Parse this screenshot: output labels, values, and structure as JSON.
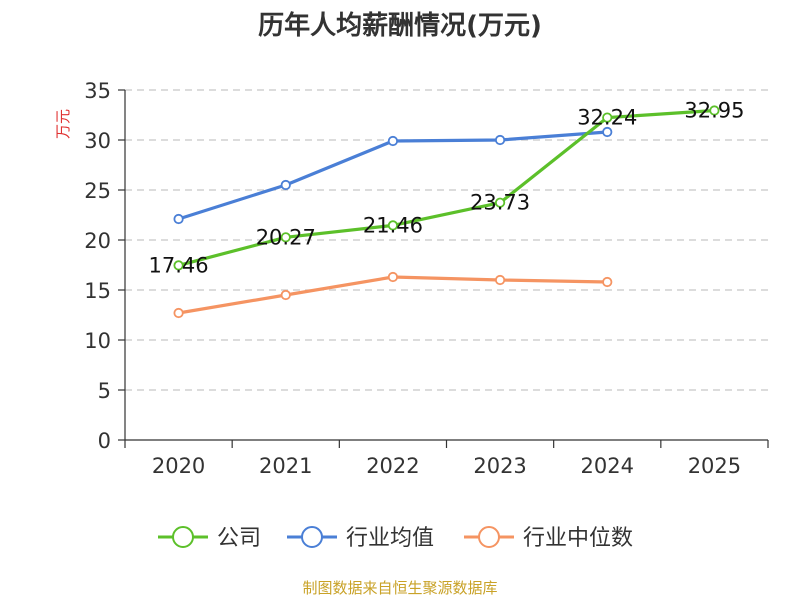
{
  "chart_data": {
    "type": "line",
    "title": "历年人均薪酬情况(万元)",
    "ylabel": "万元",
    "xlabel": "",
    "categories": [
      "2020",
      "2021",
      "2022",
      "2023",
      "2024",
      "2025"
    ],
    "ylim": [
      0,
      35
    ],
    "yticks": [
      0,
      5,
      10,
      15,
      20,
      25,
      30,
      35
    ],
    "grid": true,
    "legend_position": "bottom",
    "series": [
      {
        "name": "公司",
        "color": "#5cc02a",
        "values": [
          17.46,
          20.27,
          21.46,
          23.73,
          32.24,
          32.95
        ],
        "labels": [
          "17.46",
          "20.27",
          "21.46",
          "23.73",
          "32.24",
          "32.95"
        ]
      },
      {
        "name": "行业均值",
        "color": "#4a7fd6",
        "values": [
          22.1,
          25.5,
          29.9,
          30.0,
          30.8,
          null
        ]
      },
      {
        "name": "行业中位数",
        "color": "#f59462",
        "values": [
          12.7,
          14.5,
          16.3,
          16.0,
          15.8,
          null
        ]
      }
    ],
    "ylabel_color": "#e03131",
    "source": "制图数据来自恒生聚源数据库",
    "source_color": "#c9a227"
  }
}
